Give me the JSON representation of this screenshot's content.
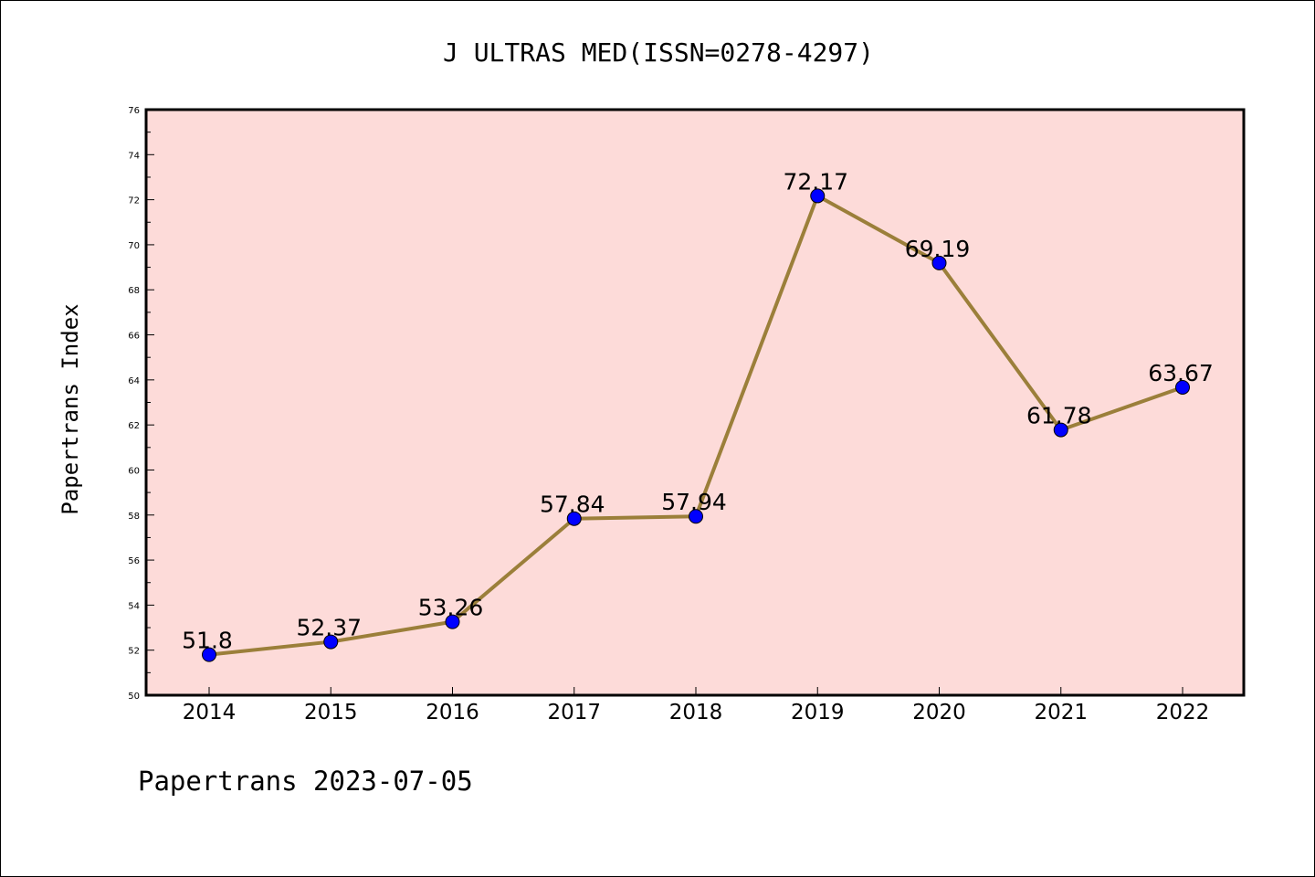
{
  "chart_data": {
    "type": "line",
    "title": "J ULTRAS MED(ISSN=0278-4297)",
    "xlabel": "",
    "ylabel": "Papertrans Index",
    "categories": [
      "2014",
      "2015",
      "2016",
      "2017",
      "2018",
      "2019",
      "2020",
      "2021",
      "2022"
    ],
    "values": [
      51.8,
      52.37,
      53.26,
      57.84,
      57.94,
      72.17,
      69.19,
      61.78,
      63.67
    ],
    "data_labels": [
      "51.8",
      "52.37",
      "53.26",
      "57.84",
      "57.94",
      "72.17",
      "69.19",
      "61.78",
      "63.67"
    ],
    "ylim": [
      50,
      76
    ],
    "yticks": [
      "50",
      "52",
      "54",
      "56",
      "58",
      "60",
      "62",
      "64",
      "66",
      "68",
      "70",
      "72",
      "74",
      "76"
    ],
    "grid": false,
    "colors": {
      "plot_background": "#fddbd9",
      "line": "#9b7f3a",
      "marker": "#0000ff"
    }
  },
  "footer": "Papertrans 2023-07-05"
}
